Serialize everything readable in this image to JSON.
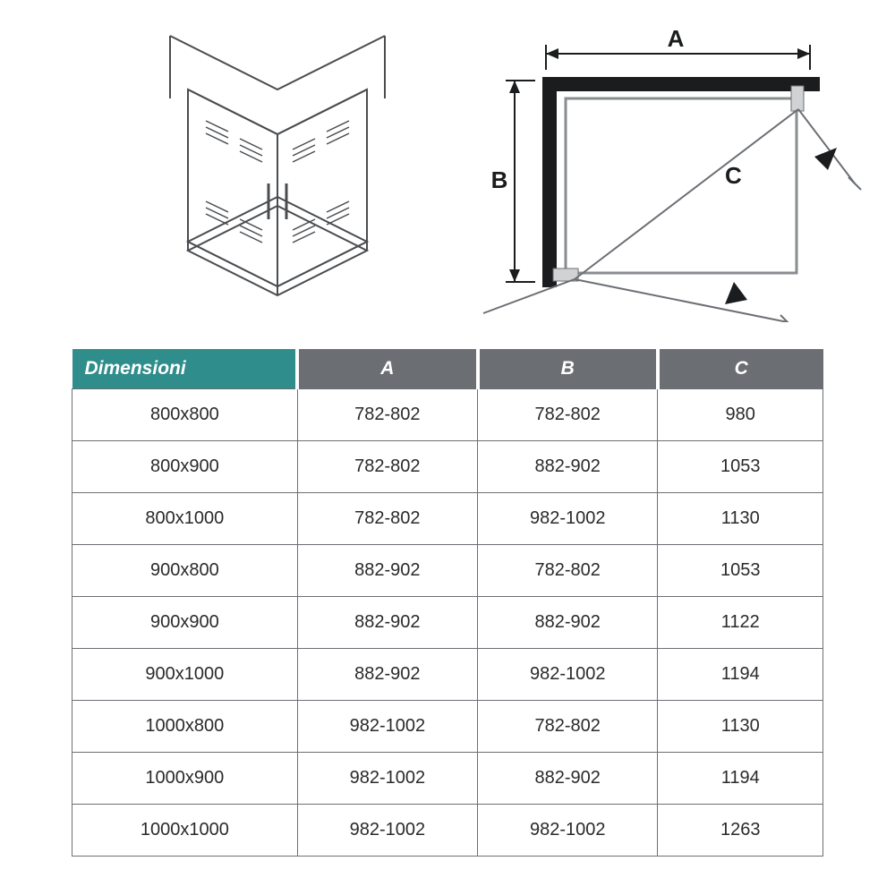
{
  "diagram": {
    "label_A": "A",
    "label_B": "B",
    "label_C": "C",
    "stroke": "#4a4d50",
    "fill_frame": "#1b1c1d",
    "light_stroke": "#8a8d90"
  },
  "table": {
    "header_first_bg": "#2f8d8b",
    "header_rest_bg": "#6b6f74",
    "header_text_color": "#ffffff",
    "cell_border_color": "#6b6f74",
    "cell_text_color": "#2a2a2a",
    "font_size_header": 21,
    "font_size_cell": 20,
    "columns": [
      "Dimensioni",
      "A",
      "B",
      "C"
    ],
    "rows": [
      [
        "800x800",
        "782-802",
        "782-802",
        "980"
      ],
      [
        "800x900",
        "782-802",
        "882-902",
        "1053"
      ],
      [
        "800x1000",
        "782-802",
        "982-1002",
        "1130"
      ],
      [
        "900x800",
        "882-902",
        "782-802",
        "1053"
      ],
      [
        "900x900",
        "882-902",
        "882-902",
        "1122"
      ],
      [
        "900x1000",
        "882-902",
        "982-1002",
        "1194"
      ],
      [
        "1000x800",
        "982-1002",
        "782-802",
        "1130"
      ],
      [
        "1000x900",
        "982-1002",
        "882-902",
        "1194"
      ],
      [
        "1000x1000",
        "982-1002",
        "982-1002",
        "1263"
      ]
    ]
  }
}
